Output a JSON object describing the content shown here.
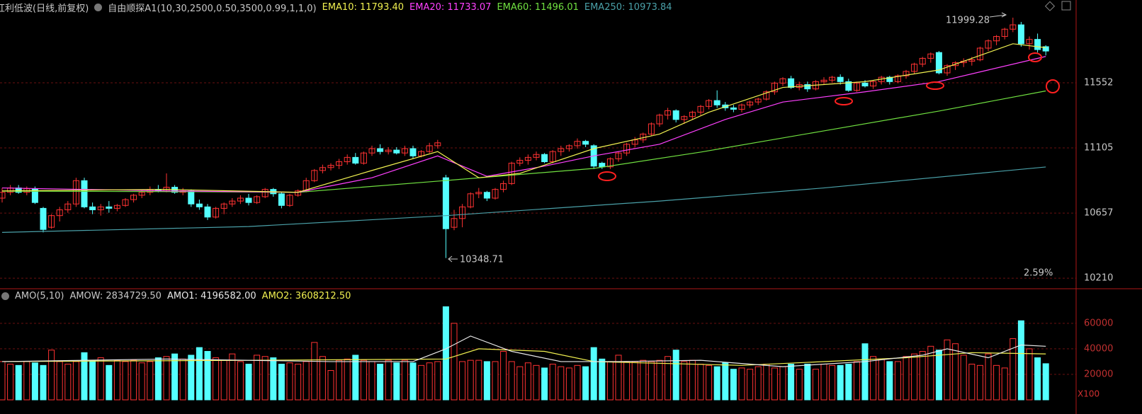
{
  "header": {
    "items": [
      {
        "text": "红利低波(日线,前复权)",
        "color": "#c8c8c8"
      },
      {
        "text": "自由顺探A1(10,30,2500,0.50,3500,0.99,1,1,0)",
        "color": "#c8c8c8"
      },
      {
        "text": "EMA10: 11793.40",
        "color": "#f0f050"
      },
      {
        "text": "EMA20: 11733.07",
        "color": "#ff40ff"
      },
      {
        "text": "EMA60: 11496.01",
        "color": "#70e040"
      },
      {
        "text": "EMA250: 10973.84",
        "color": "#4aa0a8"
      }
    ]
  },
  "volume_header": {
    "items": [
      {
        "text": "AMO(5,10)",
        "color": "#c8c8c8"
      },
      {
        "text": "AMOW: 2834729.50",
        "color": "#c8c8c8"
      },
      {
        "text": "AMO1: 4196582.00",
        "color": "#e8e8e8"
      },
      {
        "text": "AMO2: 3608212.50",
        "color": "#f0f050"
      }
    ]
  },
  "chart_data": [
    {
      "type": "candlestick",
      "up_color": "#ff3232",
      "down_color": "#54ffff",
      "grid": true,
      "ylim": [
        10138,
        12033
      ],
      "yticks": [
        11552,
        11105,
        10657,
        10210
      ],
      "open": [
        10760,
        10800,
        10830,
        10800,
        10825,
        10690,
        10560,
        10640,
        10680,
        10720,
        10880,
        10700,
        10680,
        10700,
        10690,
        10710,
        10750,
        10780,
        10800,
        10820,
        10810,
        10835,
        10800,
        10810,
        10720,
        10700,
        10630,
        10690,
        10720,
        10740,
        10760,
        10730,
        10770,
        10820,
        10790,
        10710,
        10780,
        10810,
        10880,
        10950,
        10970,
        10985,
        11010,
        11040,
        11000,
        11070,
        11100,
        11080,
        11090,
        11070,
        11100,
        11050,
        11080,
        11120,
        10900,
        10560,
        10620,
        10700,
        10790,
        10800,
        10760,
        10820,
        10860,
        11000,
        11020,
        11040,
        11060,
        11010,
        11080,
        11100,
        11120,
        11150,
        11120,
        11000,
        10975,
        11030,
        11070,
        11130,
        11160,
        11200,
        11270,
        11330,
        11360,
        11300,
        11320,
        11350,
        11390,
        11430,
        11400,
        11380,
        11370,
        11400,
        11420,
        11440,
        11490,
        11550,
        11580,
        11520,
        11540,
        11510,
        11560,
        11570,
        11590,
        11560,
        11500,
        11550,
        11530,
        11560,
        11590,
        11560,
        11600,
        11630,
        11680,
        11720,
        11760,
        11620,
        11670,
        11690,
        11700,
        11710,
        11790,
        11840,
        11870,
        11920,
        11950,
        11820,
        11850,
        11800
      ],
      "high": [
        10830,
        10850,
        10850,
        10840,
        10840,
        10700,
        10650,
        10700,
        10740,
        10900,
        10900,
        10730,
        10720,
        10740,
        10720,
        10760,
        10790,
        10820,
        10840,
        10850,
        10930,
        10850,
        10830,
        10820,
        10750,
        10720,
        10700,
        10730,
        10760,
        10780,
        10790,
        10780,
        10830,
        10830,
        10800,
        10790,
        10820,
        10900,
        10960,
        10990,
        11000,
        11030,
        11060,
        11070,
        11080,
        11120,
        11130,
        11110,
        11110,
        11120,
        11120,
        11090,
        11140,
        11160,
        10920,
        10680,
        10720,
        10800,
        10830,
        10810,
        10830,
        10880,
        11010,
        11040,
        11060,
        11080,
        11070,
        11090,
        11120,
        11130,
        11170,
        11160,
        11130,
        11010,
        11040,
        11080,
        11140,
        11180,
        11210,
        11280,
        11340,
        11380,
        11370,
        11330,
        11360,
        11400,
        11440,
        11500,
        11420,
        11400,
        11410,
        11430,
        11450,
        11500,
        11560,
        11590,
        11600,
        11560,
        11560,
        11570,
        11590,
        11600,
        11610,
        11580,
        11560,
        11570,
        11570,
        11600,
        11600,
        11610,
        11640,
        11690,
        11730,
        11760,
        11770,
        11680,
        11700,
        11720,
        11730,
        11800,
        11850,
        11880,
        11930,
        11999.28,
        11970,
        11870,
        11890,
        11810
      ],
      "low": [
        10730,
        10780,
        10790,
        10780,
        10720,
        10525,
        10550,
        10600,
        10660,
        10700,
        10690,
        10650,
        10640,
        10660,
        10670,
        10700,
        10730,
        10760,
        10780,
        10800,
        10800,
        10790,
        10780,
        10700,
        10680,
        10610,
        10620,
        10650,
        10700,
        10720,
        10710,
        10720,
        10760,
        10770,
        10690,
        10700,
        10770,
        10800,
        10870,
        10930,
        10950,
        10960,
        10990,
        10990,
        10990,
        11050,
        11060,
        11060,
        11060,
        11050,
        11030,
        11040,
        11070,
        11100,
        10348.71,
        10540,
        10560,
        10690,
        10760,
        10740,
        10750,
        10800,
        10850,
        10980,
        10990,
        11020,
        11000,
        11000,
        11050,
        11080,
        11100,
        11110,
        10960,
        10960,
        10960,
        11010,
        11050,
        11110,
        11140,
        11190,
        11250,
        11300,
        11280,
        11270,
        11300,
        11330,
        11370,
        11380,
        11360,
        11350,
        11350,
        11380,
        11400,
        11430,
        11470,
        11530,
        11510,
        11500,
        11490,
        11500,
        11540,
        11550,
        11540,
        11490,
        11490,
        11520,
        11510,
        11540,
        11540,
        11550,
        11580,
        11610,
        11660,
        11690,
        11610,
        11600,
        11640,
        11660,
        11670,
        11700,
        11770,
        11810,
        11850,
        11900,
        11800,
        11780,
        11760,
        11740
      ],
      "close": [
        10800,
        10830,
        10800,
        10825,
        10730,
        10545,
        10640,
        10680,
        10720,
        10880,
        10700,
        10680,
        10700,
        10690,
        10710,
        10750,
        10780,
        10800,
        10820,
        10810,
        10835,
        10800,
        10810,
        10720,
        10700,
        10630,
        10690,
        10720,
        10740,
        10760,
        10730,
        10770,
        10820,
        10790,
        10710,
        10780,
        10810,
        10880,
        10950,
        10970,
        10985,
        11010,
        11040,
        11000,
        11070,
        11100,
        11080,
        11090,
        11070,
        11100,
        11050,
        11080,
        11120,
        11140,
        10550,
        10620,
        10700,
        10790,
        10800,
        10760,
        10820,
        10860,
        11000,
        11020,
        11040,
        11060,
        11010,
        11080,
        11100,
        11120,
        11150,
        11130,
        10980,
        10975,
        11030,
        11070,
        11130,
        11160,
        11200,
        11270,
        11330,
        11360,
        11300,
        11320,
        11350,
        11390,
        11430,
        11400,
        11380,
        11370,
        11400,
        11420,
        11440,
        11490,
        11550,
        11580,
        11520,
        11540,
        11510,
        11560,
        11570,
        11590,
        11560,
        11500,
        11550,
        11530,
        11560,
        11590,
        11560,
        11600,
        11630,
        11680,
        11720,
        11750,
        11620,
        11670,
        11690,
        11700,
        11710,
        11790,
        11840,
        11870,
        11920,
        11950,
        11820,
        11850,
        11780,
        11770
      ],
      "lines": [
        {
          "color": "#f0f050",
          "x": [
            0,
            20,
            36,
            45,
            53,
            58,
            63,
            72,
            80,
            86,
            95,
            105,
            114,
            120,
            123,
            127
          ],
          "values": [
            10810,
            10820,
            10800,
            10950,
            11080,
            10900,
            10930,
            11100,
            11200,
            11350,
            11520,
            11560,
            11640,
            11760,
            11820,
            11793
          ]
        },
        {
          "color": "#ff40ff",
          "x": [
            0,
            20,
            36,
            45,
            53,
            59,
            66,
            72,
            80,
            88,
            95,
            105,
            114,
            120,
            127
          ],
          "values": [
            10830,
            10810,
            10800,
            10900,
            11050,
            10910,
            10980,
            11050,
            11130,
            11300,
            11420,
            11490,
            11560,
            11640,
            11733
          ]
        },
        {
          "color": "#70e040",
          "x": [
            0,
            20,
            36,
            54,
            72,
            85,
            100,
            114,
            127
          ],
          "values": [
            10808,
            10805,
            10800,
            10881,
            10964,
            11076,
            11222,
            11358,
            11496
          ]
        },
        {
          "color": "#4aa0a8",
          "x": [
            0,
            30,
            54,
            80,
            100,
            127
          ],
          "values": [
            10525,
            10565,
            10640,
            10740,
            10830,
            10974
          ]
        }
      ],
      "annotations": [
        {
          "text": "11999.28"
        },
        {
          "text": "10348.71"
        },
        {
          "text": "2.59%"
        }
      ]
    },
    {
      "type": "bar",
      "ylim": [
        0,
        76000
      ],
      "yticks": [
        60000,
        40000,
        20000
      ],
      "grid": true,
      "unit_label": "X100",
      "values": [
        30000,
        28000,
        27000,
        30000,
        29000,
        27000,
        39000,
        30000,
        28000,
        30000,
        37000,
        31000,
        33000,
        27000,
        31000,
        30000,
        31000,
        29000,
        30000,
        33000,
        34000,
        36000,
        32000,
        35000,
        41000,
        38000,
        33000,
        31000,
        36000,
        30000,
        28000,
        35000,
        34000,
        33000,
        28000,
        29000,
        28000,
        30000,
        45000,
        34000,
        23000,
        31000,
        32000,
        35000,
        31000,
        30000,
        28000,
        31000,
        29000,
        31000,
        29000,
        27000,
        29000,
        30000,
        73000,
        60000,
        30000,
        31000,
        31000,
        30000,
        30000,
        38000,
        30000,
        26000,
        29000,
        27000,
        25000,
        28000,
        26000,
        25000,
        27000,
        26000,
        41000,
        32000,
        30000,
        35000,
        30000,
        30000,
        31000,
        30000,
        31000,
        34000,
        39000,
        30000,
        31000,
        28000,
        27000,
        26000,
        29000,
        24000,
        25000,
        24000,
        26000,
        28000,
        25000,
        26000,
        28000,
        24000,
        28000,
        24000,
        28000,
        27000,
        27000,
        28000,
        30000,
        44000,
        34000,
        32000,
        30000,
        30000,
        34000,
        36000,
        38000,
        42000,
        39000,
        47000,
        44000,
        35000,
        28000,
        27000,
        36000,
        27000,
        25000,
        48000,
        62000,
        40000,
        33000,
        28347
      ],
      "lines": [
        {
          "color": "#e8e8e8",
          "x": [
            0,
            20,
            40,
            50,
            54,
            57,
            62,
            68,
            75,
            85,
            95,
            105,
            112,
            115,
            120,
            124,
            127
          ],
          "values": [
            30000,
            32000,
            30000,
            30000,
            40000,
            50000,
            38000,
            30000,
            30000,
            31000,
            26000,
            30000,
            35000,
            40000,
            33000,
            43000,
            42000
          ]
        },
        {
          "color": "#f0f050",
          "x": [
            0,
            30,
            54,
            58,
            66,
            72,
            90,
            110,
            118,
            127
          ],
          "values": [
            30000,
            31000,
            32000,
            40000,
            38000,
            30000,
            27000,
            33000,
            37000,
            36000
          ]
        }
      ]
    }
  ]
}
